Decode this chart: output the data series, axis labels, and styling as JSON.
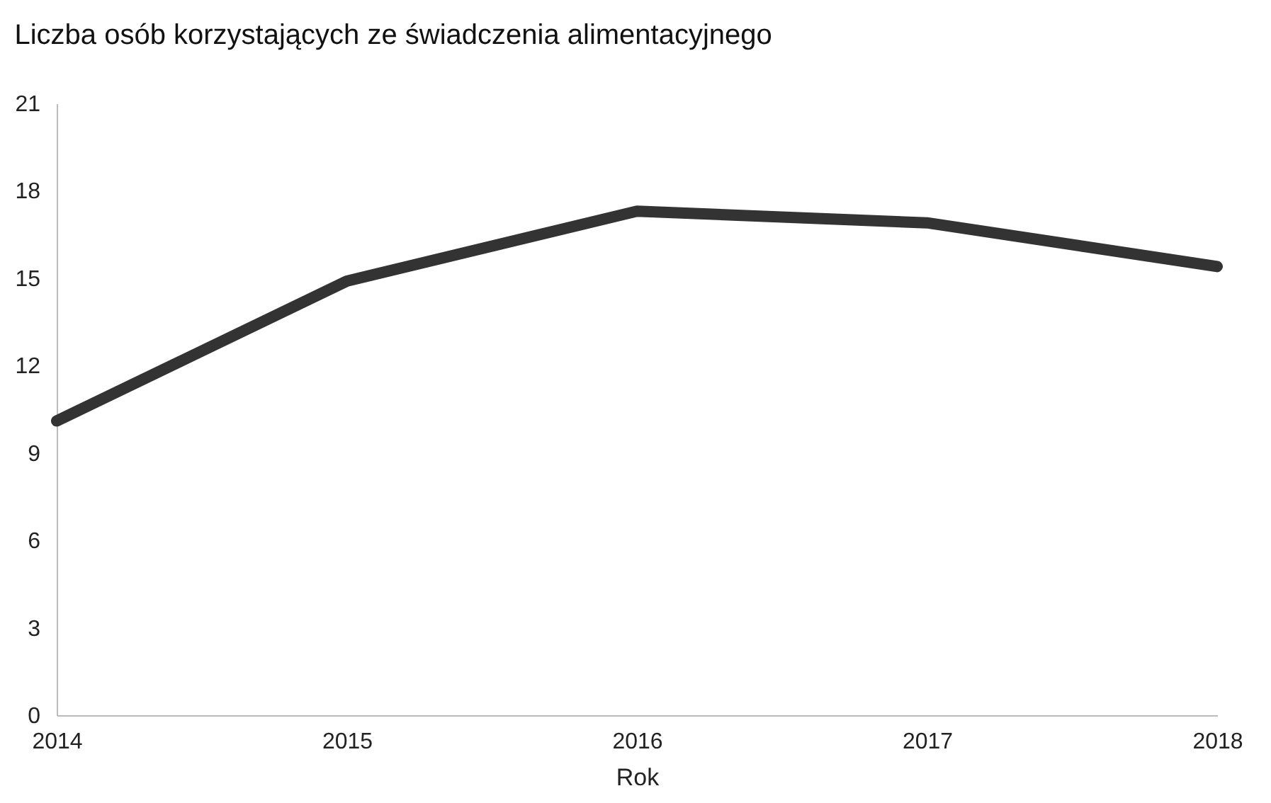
{
  "chart_data": {
    "type": "line",
    "title": "Liczba osób korzystających ze świadczenia alimentacyjnego",
    "xlabel": "Rok",
    "x": [
      2014,
      2015,
      2016,
      2017,
      2018
    ],
    "series": [
      {
        "color": "#333333",
        "values": [
          10.1,
          14.9,
          17.3,
          16.9,
          15.4
        ]
      }
    ],
    "xlim": [
      2014,
      2018
    ],
    "xticks": [
      2014,
      2015,
      2016,
      2017,
      2018
    ],
    "ylim": [
      0,
      21
    ],
    "yticks": [
      0,
      3,
      6,
      9,
      12,
      15,
      18,
      21
    ],
    "grid": false,
    "legend": false,
    "line_style": "solid"
  }
}
